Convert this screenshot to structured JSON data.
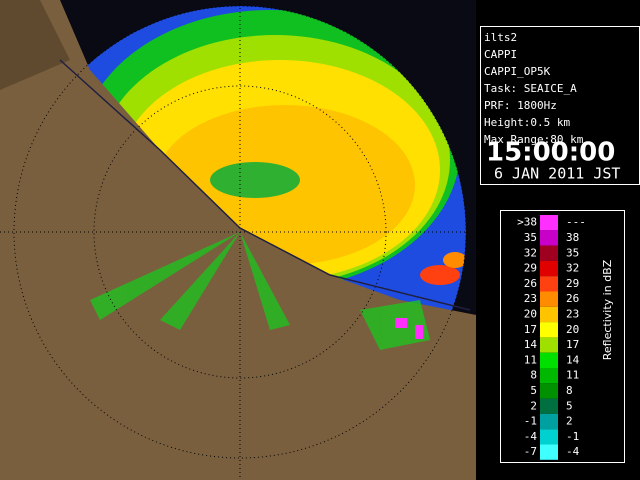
{
  "info": {
    "lines": [
      "ilts2",
      "CAPPI",
      "CAPPI_OP5K",
      "Task: SEAICE_A",
      "PRF: 1800Hz",
      "Height:0.5 km",
      "Max Range:80 km"
    ],
    "time": "15:00:00",
    "date": "6 JAN 2011 JST"
  },
  "legend": {
    "title": "Reflectivity in dBZ",
    "rows": [
      {
        "low": ">38",
        "high": "---",
        "color": "#ff30ff"
      },
      {
        "low": "35",
        "high": "38",
        "color": "#c800c8"
      },
      {
        "low": "32",
        "high": "35",
        "color": "#a00020"
      },
      {
        "low": "29",
        "high": "32",
        "color": "#e00000"
      },
      {
        "low": "26",
        "high": "29",
        "color": "#ff4010"
      },
      {
        "low": "23",
        "high": "26",
        "color": "#ff8c00"
      },
      {
        "low": "20",
        "high": "23",
        "color": "#ffc400"
      },
      {
        "low": "17",
        "high": "20",
        "color": "#ffff00"
      },
      {
        "low": "14",
        "high": "17",
        "color": "#a0e000"
      },
      {
        "low": "11",
        "high": "14",
        "color": "#00e000"
      },
      {
        "low": "8",
        "high": "11",
        "color": "#00b800"
      },
      {
        "low": "5",
        "high": "8",
        "color": "#009000"
      },
      {
        "low": "2",
        "high": "5",
        "color": "#007040"
      },
      {
        "low": "-1",
        "high": "2",
        "color": "#00a0a0"
      },
      {
        "low": "-4",
        "high": "-1",
        "color": "#00d0d0"
      },
      {
        "low": "-7",
        "high": "-4",
        "color": "#40ffff"
      }
    ]
  }
}
